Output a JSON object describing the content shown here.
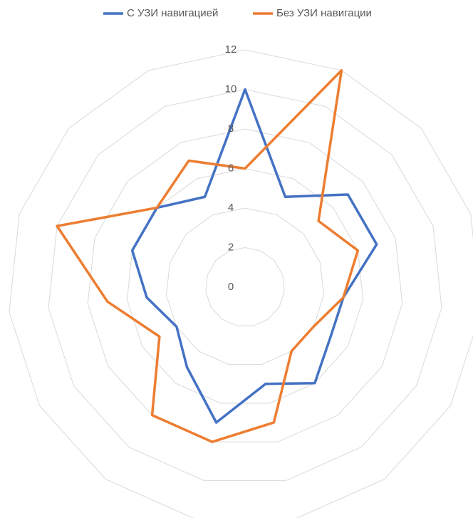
{
  "chart_data": {
    "type": "radar",
    "categories": [
      null,
      null,
      null,
      null,
      null,
      null,
      null,
      null,
      null,
      null,
      null,
      null,
      null,
      null,
      null
    ],
    "series": [
      {
        "name": "С УЗИ навигацией",
        "color": "#4472c4",
        "values": [
          10,
          5,
          7,
          7,
          5,
          5,
          6,
          5,
          7,
          5,
          4,
          5,
          6,
          6,
          5
        ]
      },
      {
        "name": "Без УЗИ навигации",
        "color": "#ed7d31",
        "values": [
          6,
          12,
          5,
          6,
          5,
          4,
          4,
          7,
          8,
          8,
          5,
          7,
          10,
          6,
          7
        ]
      }
    ],
    "ylim": [
      0,
      12
    ],
    "yticks": [
      0,
      2,
      4,
      6,
      8,
      10,
      12
    ],
    "grid": true,
    "legend": "top"
  }
}
